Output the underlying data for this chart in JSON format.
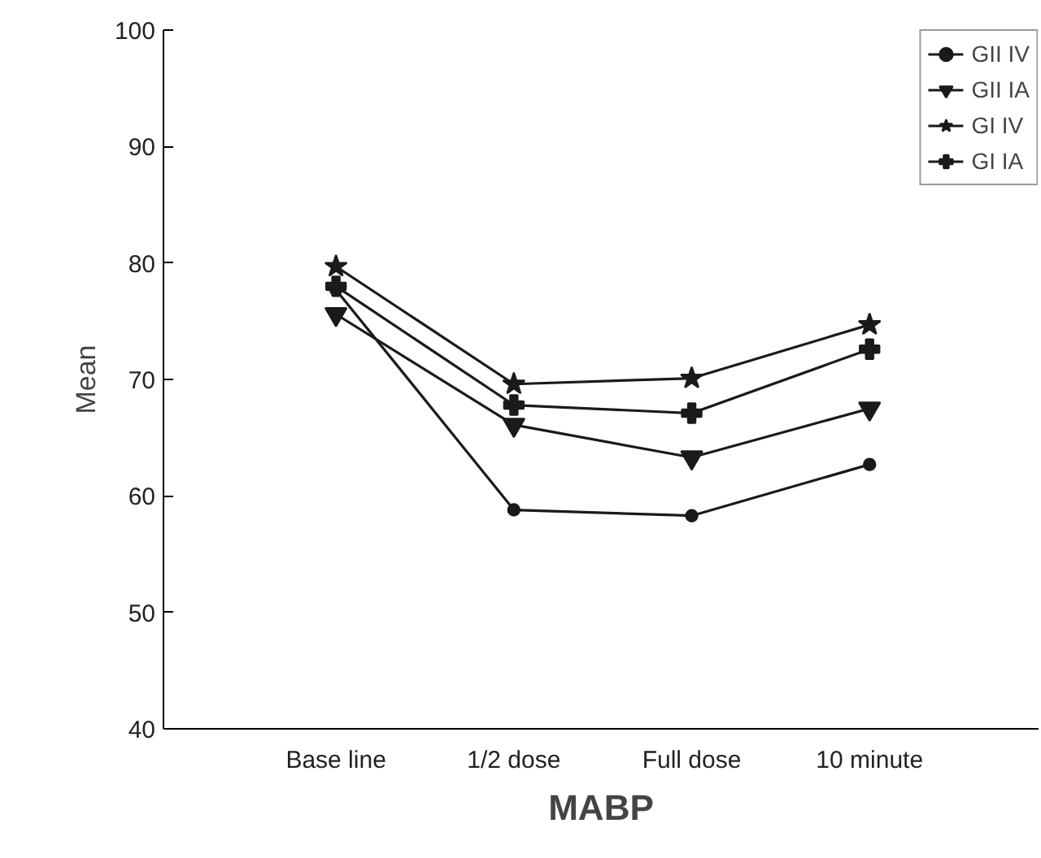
{
  "chart_data": {
    "type": "line",
    "xlabel": "MABP",
    "ylabel": "Mean",
    "categories": [
      "Base line",
      "1/2 dose",
      "Full dose",
      "10 minute"
    ],
    "ylim": [
      40,
      100
    ],
    "yticks": [
      40,
      50,
      60,
      70,
      80,
      90,
      100
    ],
    "grid": false,
    "legend": "top right",
    "line_style": "solid",
    "series": [
      {
        "name": "GII IV",
        "color": "#1a1a1a",
        "marker": "circle",
        "values": [
          77.7,
          58.8,
          58.3,
          62.7
        ]
      },
      {
        "name": "GII IA",
        "color": "#1a1a1a",
        "marker": "triangle",
        "values": [
          75.6,
          66.1,
          63.3,
          67.5
        ]
      },
      {
        "name": "GI IV",
        "color": "#1a1a1a",
        "marker": "star",
        "values": [
          79.7,
          69.6,
          70.1,
          74.7
        ]
      },
      {
        "name": "GI IA",
        "color": "#1a1a1a",
        "marker": "cross",
        "values": [
          78.0,
          67.8,
          67.1,
          72.6
        ]
      }
    ]
  }
}
